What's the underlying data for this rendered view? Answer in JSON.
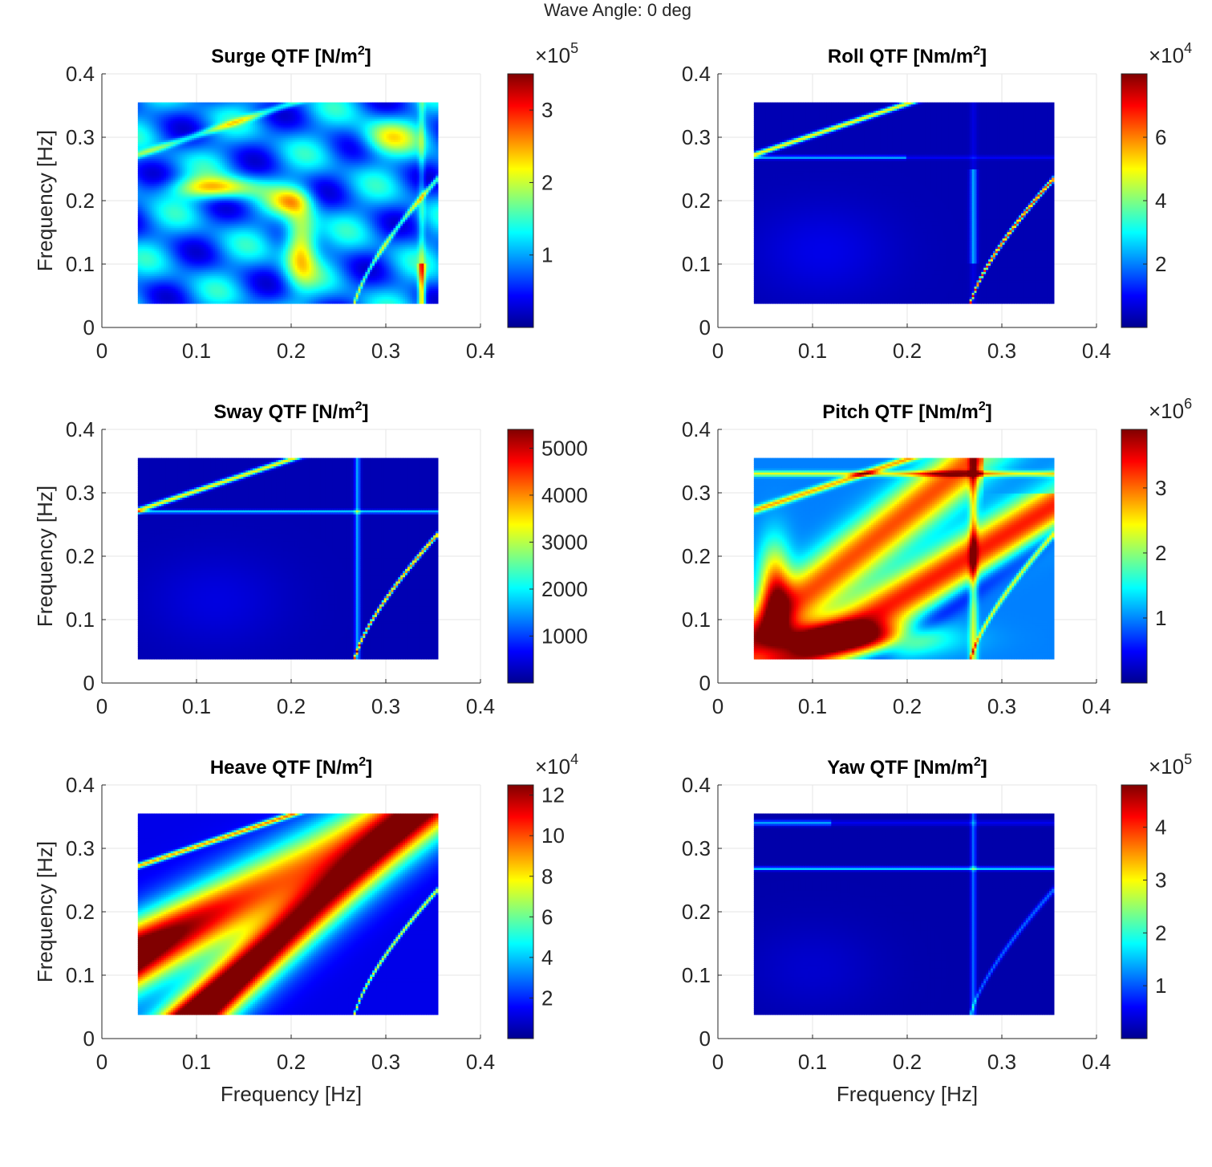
{
  "figure": {
    "suptitle": "Wave Angle: 0 deg",
    "xlabel": "Frequency [Hz]",
    "ylabel": "Frequency [Hz]",
    "axis_ticks": [
      "0",
      "0.1",
      "0.2",
      "0.3",
      "0.4"
    ],
    "colormap": [
      "#00008f",
      "#0000ff",
      "#0080ff",
      "#00ffff",
      "#80ff80",
      "#ffff00",
      "#ff8000",
      "#ff0000",
      "#800000"
    ]
  },
  "chart_data": [
    {
      "type": "heatmap",
      "key": "surge",
      "title_prefix": "Surge QTF [N/m",
      "title_sup": "2",
      "title_suffix": "]",
      "xlabel": "",
      "ylabel": "Frequency [Hz]",
      "xlim": [
        0,
        0.4
      ],
      "ylim": [
        0,
        0.4
      ],
      "data_extent": [
        0.038,
        0.355
      ],
      "clim": [
        0,
        3.5
      ],
      "colorbar_ticks": [
        1,
        2,
        3
      ],
      "colorbar_tick_labels": [
        "1",
        "2",
        "3"
      ],
      "colorbar_multiplier": "×10",
      "colorbar_exponent": "5"
    },
    {
      "type": "heatmap",
      "key": "roll",
      "title_prefix": "Roll QTF [Nm/m",
      "title_sup": "2",
      "title_suffix": "]",
      "xlabel": "",
      "ylabel": "",
      "xlim": [
        0,
        0.4
      ],
      "ylim": [
        0,
        0.4
      ],
      "data_extent": [
        0.038,
        0.355
      ],
      "clim": [
        0,
        8
      ],
      "colorbar_ticks": [
        2,
        4,
        6
      ],
      "colorbar_tick_labels": [
        "2",
        "4",
        "6"
      ],
      "colorbar_multiplier": "×10",
      "colorbar_exponent": "4"
    },
    {
      "type": "heatmap",
      "key": "sway",
      "title_prefix": "Sway QTF [N/m",
      "title_sup": "2",
      "title_suffix": "]",
      "xlabel": "",
      "ylabel": "Frequency [Hz]",
      "xlim": [
        0,
        0.4
      ],
      "ylim": [
        0,
        0.4
      ],
      "data_extent": [
        0.038,
        0.355
      ],
      "clim": [
        0,
        5400
      ],
      "colorbar_ticks": [
        1000,
        2000,
        3000,
        4000,
        5000
      ],
      "colorbar_tick_labels": [
        "1000",
        "2000",
        "3000",
        "4000",
        "5000"
      ],
      "colorbar_multiplier": "",
      "colorbar_exponent": ""
    },
    {
      "type": "heatmap",
      "key": "pitch",
      "title_prefix": "Pitch QTF [Nm/m",
      "title_sup": "2",
      "title_suffix": "]",
      "xlabel": "",
      "ylabel": "",
      "xlim": [
        0,
        0.4
      ],
      "ylim": [
        0,
        0.4
      ],
      "data_extent": [
        0.038,
        0.355
      ],
      "clim": [
        0,
        3.9
      ],
      "colorbar_ticks": [
        1,
        2,
        3
      ],
      "colorbar_tick_labels": [
        "1",
        "2",
        "3"
      ],
      "colorbar_multiplier": "×10",
      "colorbar_exponent": "6"
    },
    {
      "type": "heatmap",
      "key": "heave",
      "title_prefix": "Heave QTF [N/m",
      "title_sup": "2",
      "title_suffix": "]",
      "xlabel": "Frequency [Hz]",
      "ylabel": "Frequency [Hz]",
      "xlim": [
        0,
        0.4
      ],
      "ylim": [
        0,
        0.4
      ],
      "data_extent": [
        0.038,
        0.355
      ],
      "clim": [
        0,
        12.5
      ],
      "colorbar_ticks": [
        2,
        4,
        6,
        8,
        10,
        12
      ],
      "colorbar_tick_labels": [
        "2",
        "4",
        "6",
        "8",
        "10",
        "12"
      ],
      "colorbar_multiplier": "×10",
      "colorbar_exponent": "4"
    },
    {
      "type": "heatmap",
      "key": "yaw",
      "title_prefix": "Yaw QTF [Nm/m",
      "title_sup": "2",
      "title_suffix": "]",
      "xlabel": "Frequency [Hz]",
      "ylabel": "",
      "xlim": [
        0,
        0.4
      ],
      "ylim": [
        0,
        0.4
      ],
      "data_extent": [
        0.038,
        0.355
      ],
      "clim": [
        0,
        4.8
      ],
      "colorbar_ticks": [
        1,
        2,
        3,
        4
      ],
      "colorbar_tick_labels": [
        "1",
        "2",
        "3",
        "4"
      ],
      "colorbar_multiplier": "×10",
      "colorbar_exponent": "5"
    }
  ]
}
